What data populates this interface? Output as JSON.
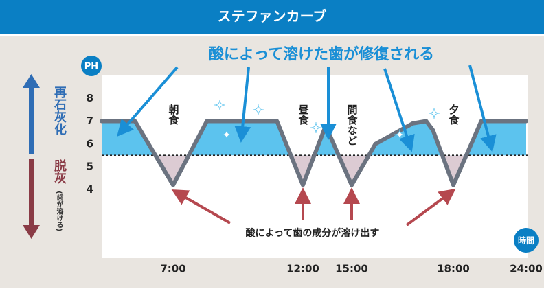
{
  "header": {
    "title": "ステファンカーブ"
  },
  "chart_data": {
    "type": "line",
    "y_label": "PH",
    "x_label": "時間",
    "x": [
      4,
      5.4,
      7,
      8.3,
      11,
      12,
      13.4,
      15,
      15.7,
      16.8,
      17.2,
      17.4,
      18,
      20.3,
      24
    ],
    "series": [
      {
        "color": "#6b7380",
        "values": [
          7,
          7,
          4.2,
          7,
          7,
          4.2,
          6.8,
          4.2,
          6,
          6.9,
          7,
          6.6,
          4.2,
          7,
          7
        ]
      }
    ],
    "xlim": [
      4,
      24
    ],
    "xticks": [
      {
        "value": 7,
        "label": "7:00"
      },
      {
        "value": 12,
        "label": "12:00"
      },
      {
        "value": 15,
        "label": "15:00"
      },
      {
        "value": 18,
        "label": "18:00"
      },
      {
        "value": 24,
        "label": "24:00"
      }
    ],
    "ylim": [
      1,
      9
    ],
    "yticks": [
      4,
      5,
      6,
      7,
      8
    ],
    "threshold": 5.5,
    "above_color": "#5cc3ee",
    "below_color": "#dccbd3",
    "meals": [
      {
        "label": "朝食",
        "x": 7
      },
      {
        "label": "昼食",
        "x": 12
      },
      {
        "label": "間食など",
        "x": 15
      },
      {
        "label": "夕食",
        "x": 18
      }
    ],
    "side_labels": {
      "up": "再石灰化",
      "down": "脱灰",
      "down_note": "(歯が溶ける)"
    },
    "annotations": {
      "repair": "酸によって溶けた歯が修復される",
      "erosion": "酸によって歯の成分が溶け出す"
    }
  }
}
